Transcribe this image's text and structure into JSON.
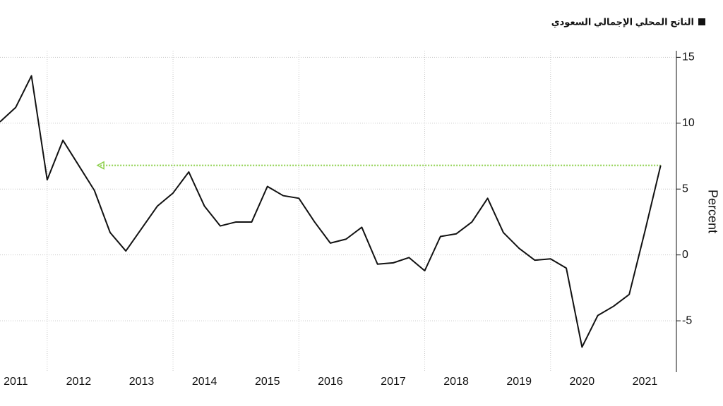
{
  "chart_data": {
    "type": "line",
    "y_label": "Percent",
    "series": [
      {
        "name": "الناتج المحلي الإجمالي السعودي",
        "color": "#111111",
        "values": [
          10.1,
          11.2,
          13.6,
          5.7,
          8.7,
          6.8,
          4.9,
          1.7,
          0.3,
          2.0,
          3.7,
          4.7,
          6.3,
          3.7,
          2.2,
          2.5,
          2.5,
          5.2,
          4.5,
          4.3,
          2.5,
          0.9,
          1.2,
          2.1,
          -0.7,
          -0.6,
          -0.2,
          -1.2,
          1.4,
          1.6,
          2.5,
          4.3,
          1.7,
          0.5,
          -0.4,
          -0.3,
          -1.0,
          -7.0,
          -4.6,
          -3.9,
          -3.0,
          1.8,
          6.8
        ]
      }
    ],
    "x": [
      2011.25,
      2011.5,
      2011.75,
      2012,
      2012.25,
      2012.5,
      2012.75,
      2013,
      2013.25,
      2013.5,
      2013.75,
      2014,
      2014.25,
      2014.5,
      2014.75,
      2015,
      2015.25,
      2015.5,
      2015.75,
      2016,
      2016.25,
      2016.5,
      2016.75,
      2017,
      2017.25,
      2017.5,
      2017.75,
      2018,
      2018.25,
      2018.5,
      2018.75,
      2019,
      2019.25,
      2019.5,
      2019.75,
      2020,
      2020.25,
      2020.5,
      2020.75,
      2021,
      2021.25,
      2021.5,
      2021.75
    ],
    "xlim": [
      2011.25,
      2022
    ],
    "xticks": [
      {
        "value": 2011.5,
        "label": "2011"
      },
      {
        "value": 2012.5,
        "label": "2012"
      },
      {
        "value": 2013.5,
        "label": "2013"
      },
      {
        "value": 2014.5,
        "label": "2014"
      },
      {
        "value": 2015.5,
        "label": "2015"
      },
      {
        "value": 2016.5,
        "label": "2016"
      },
      {
        "value": 2017.5,
        "label": "2017"
      },
      {
        "value": 2018.5,
        "label": "2018"
      },
      {
        "value": 2019.5,
        "label": "2019"
      },
      {
        "value": 2020.5,
        "label": "2020"
      },
      {
        "value": 2021.5,
        "label": "2021"
      }
    ],
    "xgrid_lines": [
      2012,
      2014,
      2016,
      2018,
      2020
    ],
    "ylim": [
      -8.9,
      15.5
    ],
    "yticks": [
      15,
      10,
      5,
      0,
      -5
    ],
    "y_axis_side": "right",
    "grid": true,
    "reference_line": {
      "value": 6.8,
      "from": 2012.8,
      "color": "#8fd14f"
    }
  }
}
